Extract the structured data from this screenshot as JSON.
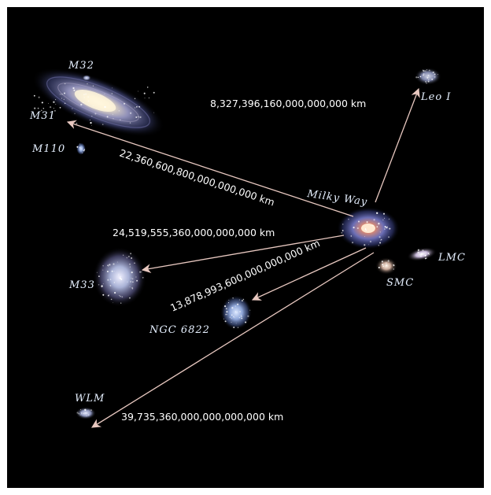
{
  "galaxies": {
    "m32": "M32",
    "m31": "M31",
    "m110": "M110",
    "leo1": "Leo I",
    "milky_way": "Milky Way",
    "lmc": "LMC",
    "smc": "SMC",
    "m33": "M33",
    "ngc6822": "NGC 6822",
    "wlm": "WLM"
  },
  "distances": {
    "leo1": "8,327,396,160,000,000,000 km",
    "m31": "22,360,600,800,000,000,000 km",
    "m33": "24,519,555,360,000,000,000 km",
    "ngc6822": "13,878,993,600,000,000,000 km",
    "wlm": "39,735,360,000,000,000,000 km"
  },
  "colors": {
    "background": "#000000",
    "arrow": "#e8c8c0",
    "label": "#e6f0ff"
  }
}
